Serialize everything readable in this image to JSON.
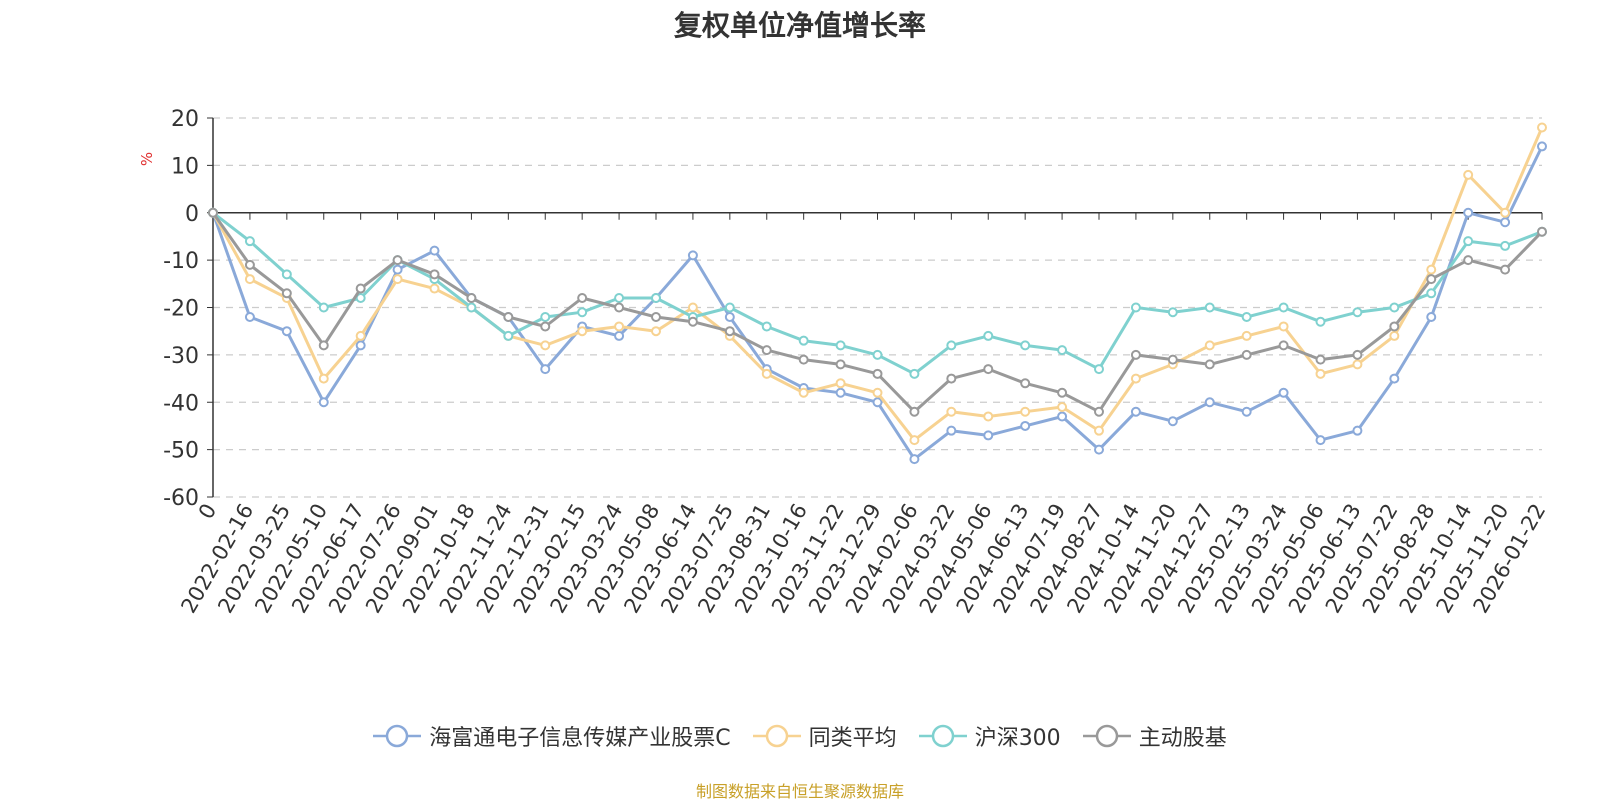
{
  "title": "复权单位净值增长率",
  "source": "制图数据来自恒生聚源数据库",
  "chart_data": {
    "type": "line",
    "title": "复权单位净值增长率",
    "ylabel": "%",
    "ylim": [
      -60,
      20
    ],
    "yticks": [
      20,
      10,
      0,
      -10,
      -20,
      -30,
      -40,
      -50,
      -60
    ],
    "grid": true,
    "legend_position": "bottom",
    "categories": [
      "0",
      "2022-02-16",
      "2022-03-25",
      "2022-05-10",
      "2022-06-17",
      "2022-07-26",
      "2022-09-01",
      "2022-10-18",
      "2022-11-24",
      "2022-12-31",
      "2023-02-15",
      "2023-03-24",
      "2023-05-08",
      "2023-06-14",
      "2023-07-25",
      "2023-08-31",
      "2023-10-16",
      "2023-11-22",
      "2023-12-29",
      "2024-02-06",
      "2024-03-22",
      "2024-05-06",
      "2024-06-13",
      "2024-07-19",
      "2024-08-27",
      "2024-10-14",
      "2024-11-20",
      "2024-12-27",
      "2025-02-13",
      "2025-03-24",
      "2025-05-06",
      "2025-06-13",
      "2025-07-22",
      "2025-08-28",
      "2025-10-14",
      "2025-11-20",
      "2026-01-22"
    ],
    "series": [
      {
        "name": "海富通电子信息传媒产业股票C",
        "color": "#8aa9d9",
        "values": [
          0,
          -22,
          -25,
          -40,
          -28,
          -12,
          -8,
          -18,
          -22,
          -33,
          -24,
          -26,
          -18,
          -9,
          -22,
          -33,
          -37,
          -38,
          -40,
          -52,
          -46,
          -47,
          -45,
          -43,
          -50,
          -42,
          -44,
          -40,
          -42,
          -38,
          -48,
          -46,
          -35,
          -22,
          0,
          -2,
          14
        ]
      },
      {
        "name": "同类平均",
        "color": "#f7d291",
        "values": [
          0,
          -14,
          -18,
          -35,
          -26,
          -14,
          -16,
          -20,
          -26,
          -28,
          -25,
          -24,
          -25,
          -20,
          -26,
          -34,
          -38,
          -36,
          -38,
          -48,
          -42,
          -43,
          -42,
          -41,
          -46,
          -35,
          -32,
          -28,
          -26,
          -24,
          -34,
          -32,
          -26,
          -12,
          8,
          0,
          18
        ]
      },
      {
        "name": "沪深300",
        "color": "#7fd1cf",
        "values": [
          0,
          -6,
          -13,
          -20,
          -18,
          -10,
          -14,
          -20,
          -26,
          -22,
          -21,
          -18,
          -18,
          -22,
          -20,
          -24,
          -27,
          -28,
          -30,
          -34,
          -28,
          -26,
          -28,
          -29,
          -33,
          -20,
          -21,
          -20,
          -22,
          -20,
          -23,
          -21,
          -20,
          -17,
          -6,
          -7,
          -4
        ]
      },
      {
        "name": "主动股基",
        "color": "#999999",
        "values": [
          0,
          -11,
          -17,
          -28,
          -16,
          -10,
          -13,
          -18,
          -22,
          -24,
          -18,
          -20,
          -22,
          -23,
          -25,
          -29,
          -31,
          -32,
          -34,
          -42,
          -35,
          -33,
          -36,
          -38,
          -42,
          -30,
          -31,
          -32,
          -30,
          -28,
          -31,
          -30,
          -24,
          -14,
          -10,
          -12,
          -4
        ]
      }
    ]
  }
}
